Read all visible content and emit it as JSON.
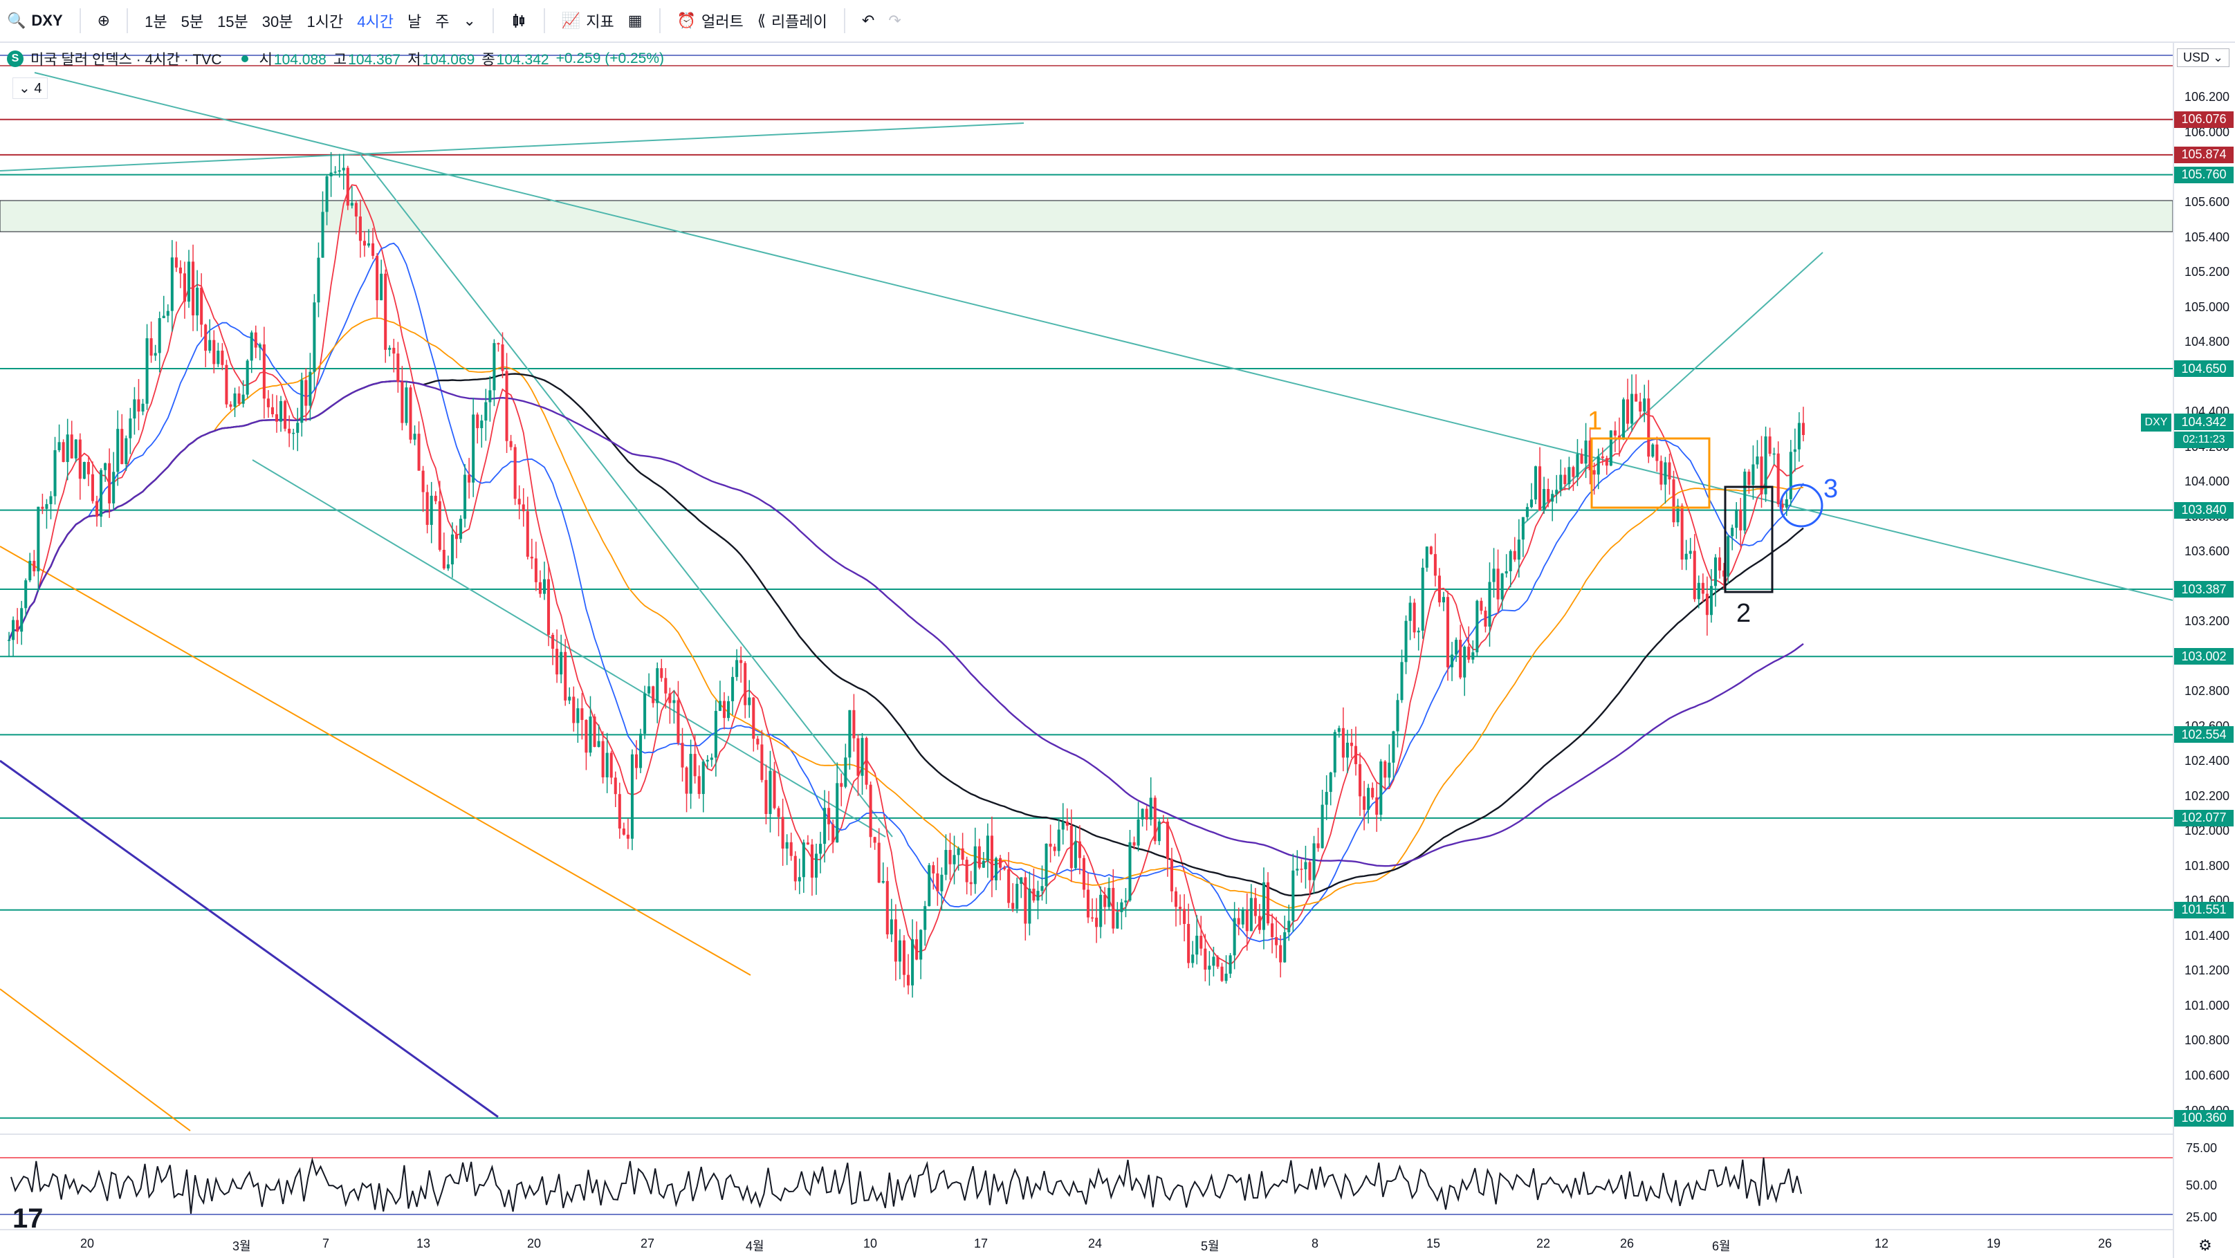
{
  "toolbar": {
    "symbol": "DXY",
    "timeframes": [
      "1분",
      "5분",
      "15분",
      "30분",
      "1시간",
      "4시간",
      "날",
      "주"
    ],
    "active_timeframe": "4시간",
    "indicators_label": "지표",
    "alert_label": "얼러트",
    "replay_label": "리플레이",
    "icons": [
      "search-icon",
      "plus-circle-icon",
      "chevron-down-icon",
      "candle-icon",
      "indicators-icon",
      "templates-icon",
      "alarm-icon",
      "replay-icon",
      "undo-icon",
      "redo-icon"
    ]
  },
  "legend": {
    "symbol_badge": "S",
    "title": "미국 달러 인덱스 · 4시간 · TVC",
    "o_key": "시",
    "o_val": "104.088",
    "h_key": "고",
    "h_val": "104.367",
    "l_key": "저",
    "l_val": "104.069",
    "c_key": "종",
    "c_val": "104.342",
    "change": "+0.259 (+0.25%)",
    "indicator_count": "4"
  },
  "axis": {
    "currency": "USD",
    "price_ticks": [
      "106.200",
      "106.000",
      "105.600",
      "105.400",
      "105.200",
      "105.000",
      "104.800",
      "104.400",
      "104.200",
      "104.000",
      "103.800",
      "103.600",
      "103.200",
      "102.800",
      "102.600",
      "102.400",
      "102.200",
      "102.000",
      "101.800",
      "101.600",
      "101.400",
      "101.200",
      "101.000",
      "100.800",
      "100.600",
      "100.400"
    ],
    "level_tags": [
      {
        "text": "106.076",
        "color": "#b22833"
      },
      {
        "text": "105.874",
        "color": "#b22833"
      },
      {
        "text": "105.760",
        "color": "#089981"
      },
      {
        "text": "104.650",
        "color": "#089981"
      },
      {
        "text": "103.840",
        "color": "#089981"
      },
      {
        "text": "103.387",
        "color": "#089981"
      },
      {
        "text": "103.002",
        "color": "#089981"
      },
      {
        "text": "102.554",
        "color": "#089981"
      },
      {
        "text": "102.077",
        "color": "#089981"
      },
      {
        "text": "101.551",
        "color": "#089981"
      },
      {
        "text": "100.360",
        "color": "#089981"
      }
    ],
    "last_price": "104.342",
    "countdown": "02:11:23",
    "symbol_tag": "DXY",
    "osc_ticks": [
      "75.00",
      "50.00",
      "25.00"
    ]
  },
  "time_axis": [
    "20",
    "3월",
    "7",
    "13",
    "20",
    "27",
    "4월",
    "10",
    "17",
    "24",
    "5월",
    "8",
    "15",
    "22",
    "26",
    "6월",
    "12",
    "19",
    "26"
  ],
  "annotations": {
    "one": "1",
    "two": "2",
    "three": "3"
  },
  "branding": "17",
  "colors": {
    "up": "#089981",
    "down": "#f23645",
    "accent": "#2962ff",
    "ma_fast": "#f23645",
    "ma_mid": "#2962ff",
    "ma_orange": "#ff9800",
    "ma_black": "#131722",
    "ma_purple": "#5b2bb3"
  },
  "chart_data": {
    "type": "candlestick",
    "title": "미국 달러 인덱스 · 4시간 · TVC",
    "ylim": [
      100.3,
      106.3
    ],
    "close_path": [
      103.1,
      103.5,
      103.9,
      104.3,
      104.1,
      103.9,
      104.2,
      104.5,
      104.9,
      105.3,
      105.0,
      104.7,
      104.5,
      104.8,
      104.4,
      104.3,
      104.6,
      105.6,
      105.8,
      105.4,
      105.0,
      104.5,
      104.0,
      103.7,
      103.6,
      104.4,
      104.8,
      104.1,
      103.6,
      103.2,
      102.8,
      102.6,
      102.3,
      102.0,
      102.9,
      102.9,
      102.4,
      102.2,
      102.6,
      102.9,
      102.4,
      102.1,
      101.7,
      101.9,
      102.0,
      102.7,
      102.2,
      101.5,
      101.1,
      101.6,
      101.9,
      101.9,
      101.8,
      101.9,
      101.6,
      101.7,
      102.0,
      101.8,
      101.6,
      101.5,
      101.8,
      102.2,
      101.8,
      101.4,
      101.2,
      101.3,
      101.4,
      101.6,
      101.4,
      101.7,
      102.0,
      102.6,
      102.4,
      102.2,
      102.6,
      103.2,
      103.5,
      103.1,
      103.0,
      103.3,
      103.6,
      103.8,
      104.0,
      104.1,
      104.2,
      104.0,
      104.3,
      104.5,
      104.2,
      103.9,
      103.5,
      103.4,
      103.7,
      104.0,
      104.1,
      103.9,
      104.3
    ],
    "moving_average_lines": 5,
    "horizontal_levels": [
      106.076,
      105.874,
      105.76,
      104.65,
      103.84,
      103.387,
      103.002,
      102.554,
      102.077,
      101.551,
      100.36
    ],
    "oscillator": {
      "upper": 70,
      "lower": 30,
      "ticks": [
        75,
        50,
        25
      ]
    }
  }
}
